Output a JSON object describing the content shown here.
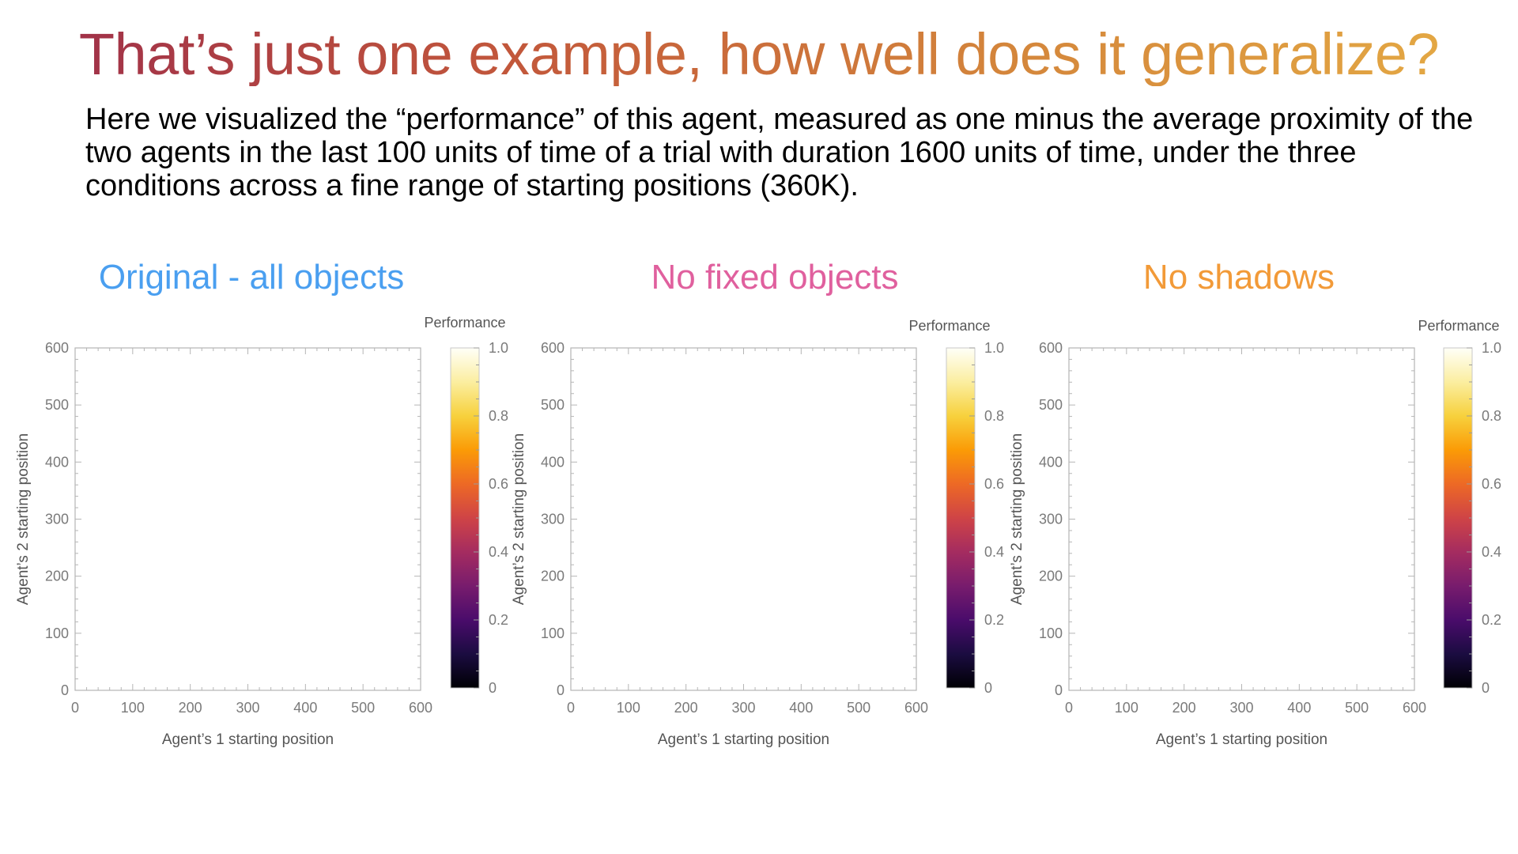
{
  "slide": {
    "title": "That’s just one example, how well does it generalize?",
    "title_gradient": [
      "#9b2b4b",
      "#c2573b",
      "#d4863b",
      "#e6ad45"
    ],
    "subtitle": "Here we visualized the “performance” of this agent, measured as one minus the average proximity of the two agents in the last 100 units of time of a trial with duration 1600 units of time, under the three conditions across a fine range of starting positions (360K)."
  },
  "chart_data": [
    {
      "type": "heatmap",
      "title": "Original - all objects",
      "title_color": "#4a9ff0",
      "xlabel": "Agent’s 1 starting position",
      "ylabel": "Agent’s 2 starting position",
      "xlim": [
        0,
        600
      ],
      "ylim": [
        0,
        600
      ],
      "xticks": [
        0,
        100,
        200,
        300,
        400,
        500,
        600
      ],
      "yticks": [
        0,
        100,
        200,
        300,
        400,
        500,
        600
      ],
      "colorbar": {
        "label": "Performance",
        "range": [
          0,
          1.0
        ],
        "ticks": [
          "0",
          "0.2",
          "0.4",
          "0.6",
          "0.8",
          "1.0"
        ],
        "colormap": "inferno"
      },
      "values": []
    },
    {
      "type": "heatmap",
      "title": "No fixed objects",
      "title_color": "#e0609e",
      "xlabel": "Agent’s 1 starting position",
      "ylabel": "Agent’s 2 starting position",
      "xlim": [
        0,
        600
      ],
      "ylim": [
        0,
        600
      ],
      "xticks": [
        0,
        100,
        200,
        300,
        400,
        500,
        600
      ],
      "yticks": [
        0,
        100,
        200,
        300,
        400,
        500,
        600
      ],
      "colorbar": {
        "label": "Performance",
        "range": [
          0,
          1.0
        ],
        "ticks": [
          "0",
          "0.2",
          "0.4",
          "0.6",
          "0.8",
          "1.0"
        ],
        "colormap": "inferno"
      },
      "values": []
    },
    {
      "type": "heatmap",
      "title": "No shadows",
      "title_color": "#f29a38",
      "xlabel": "Agent’s 1 starting position",
      "ylabel": "Agent’s 2 starting position",
      "xlim": [
        0,
        600
      ],
      "ylim": [
        0,
        600
      ],
      "xticks": [
        0,
        100,
        200,
        300,
        400,
        500,
        600
      ],
      "yticks": [
        0,
        100,
        200,
        300,
        400,
        500,
        600
      ],
      "colorbar": {
        "label": "Performance",
        "range": [
          0,
          1.0
        ],
        "ticks": [
          "0",
          "0.2",
          "0.4",
          "0.6",
          "0.8",
          "1.0"
        ],
        "colormap": "inferno"
      },
      "values": []
    }
  ]
}
